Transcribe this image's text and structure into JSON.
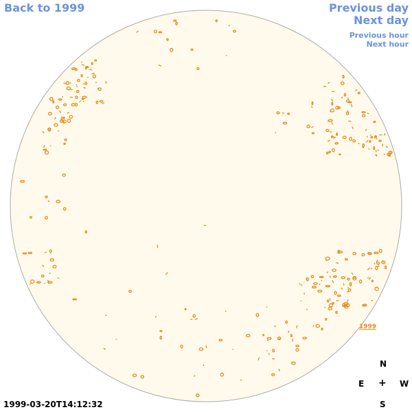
{
  "navigation": {
    "back_label": "Back to 1999",
    "previous_day_label": "Previous day",
    "next_day_label": "Next day",
    "previous_hour_label": "Previous hour",
    "next_hour_label": "Next hour"
  },
  "compass": {
    "north": "N",
    "east": "E",
    "center": "+",
    "west": "W",
    "south": "S"
  },
  "timestamp": "1999-03-20T14:12:32",
  "year_marker_label": "1999",
  "colors": {
    "link": "#6b93dc",
    "disk_fill": "#fffaec",
    "disk_border": "#aaaaaa",
    "feature": "#e88a1a"
  }
}
